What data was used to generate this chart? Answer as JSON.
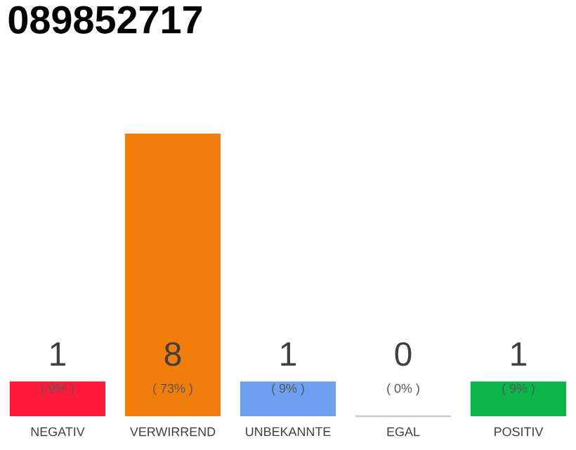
{
  "chart_data": {
    "type": "bar",
    "title": "089852717",
    "categories": [
      "NEGATIV",
      "VERWIRREND",
      "UNBEKANNTE",
      "EGAL",
      "POSITIV"
    ],
    "values": [
      9,
      73,
      9,
      0,
      9
    ],
    "colors": [
      "#ff1a3c",
      "#f07c0a",
      "#6fa0ef",
      "#cccccc",
      "#0ab54a"
    ],
    "value_labels": [
      "( 9% )",
      "( 73% )",
      "( 9% )",
      "( 0% )",
      "( 9% )"
    ],
    "annotations": [
      "1",
      "8",
      "1",
      "0",
      "1"
    ]
  }
}
